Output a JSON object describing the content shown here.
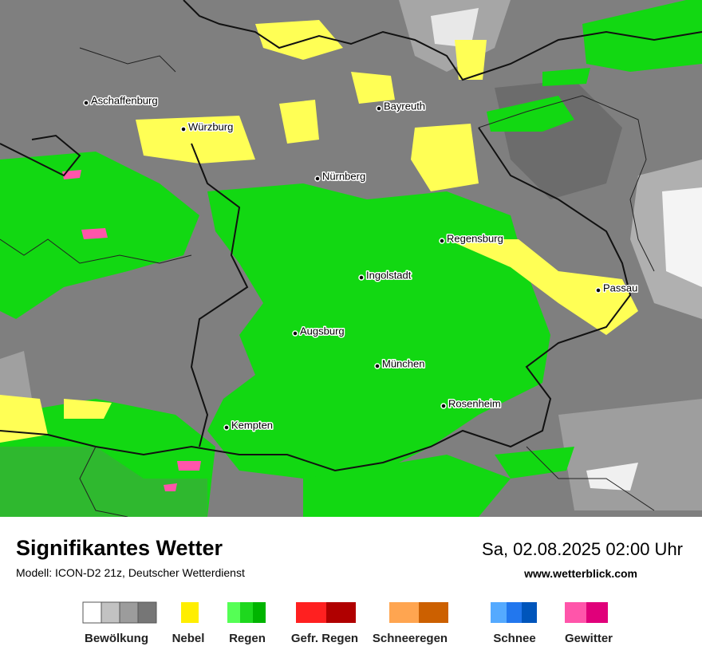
{
  "map": {
    "cities": [
      "Aschaffenburg",
      "Würzburg",
      "Bayreuth",
      "Nürnberg",
      "Regensburg",
      "Ingolstadt",
      "Passau",
      "Augsburg",
      "München",
      "Rosenheim",
      "Kempten"
    ]
  },
  "footer": {
    "title": "Signifikantes Wetter",
    "subtitle": "Modell: ICON-D2 21z, Deutscher Wetterdienst",
    "datetime": "Sa, 02.08.2025 02:00 Uhr",
    "website": "www.wetterblick.com"
  },
  "legend": {
    "items": [
      "Bewölkung",
      "Nebel",
      "Regen",
      "Gefr. Regen",
      "Schneeregen",
      "Schnee",
      "Gewitter"
    ]
  }
}
